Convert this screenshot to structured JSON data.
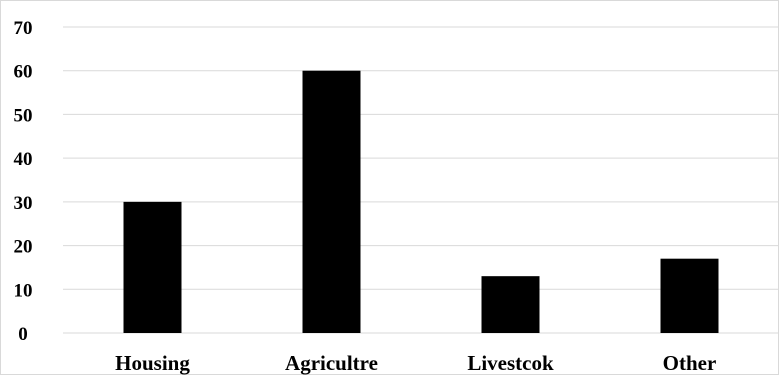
{
  "chart_data": {
    "type": "bar",
    "categories": [
      "Housing",
      "Agricultre",
      "Livestcok",
      "Other"
    ],
    "values": [
      30,
      60,
      13,
      17
    ],
    "title": "",
    "xlabel": "",
    "ylabel": "",
    "ylim": [
      0,
      70
    ],
    "yticks": [
      0,
      10,
      20,
      30,
      40,
      50,
      60,
      70
    ],
    "grid": true,
    "legend": "none",
    "colors": {
      "bar": "#000000",
      "grid": "#d9d9d9"
    }
  }
}
